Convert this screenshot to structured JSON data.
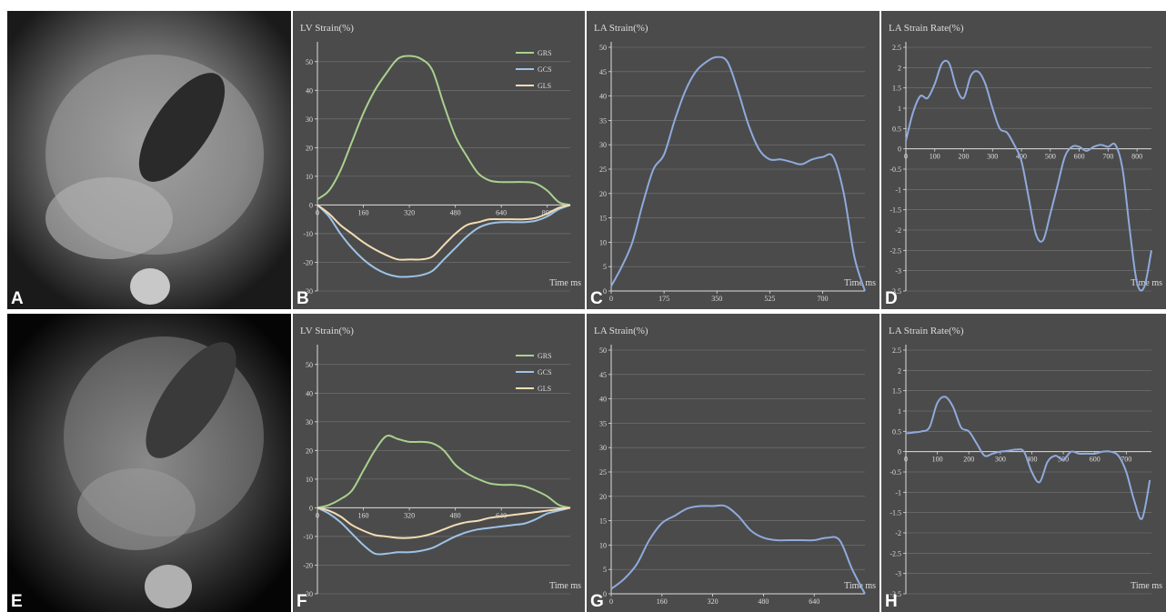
{
  "images": [
    {
      "label": "A"
    },
    {
      "label": "E"
    }
  ],
  "chart_data": [
    {
      "type": "line",
      "label": "B",
      "title": "LV Strain(%)",
      "xlabel": "Time ms",
      "legend": "upper right",
      "grid": true,
      "xlim": [
        0,
        880
      ],
      "ylim": [
        -30,
        55
      ],
      "xticks": [
        0,
        160,
        320,
        480,
        640,
        800
      ],
      "yticks": [
        -30,
        -20,
        -10,
        0,
        10,
        20,
        30,
        40,
        50
      ],
      "x": [
        0,
        40,
        80,
        120,
        160,
        200,
        240,
        280,
        320,
        360,
        400,
        440,
        480,
        520,
        560,
        600,
        640,
        680,
        720,
        760,
        800,
        840,
        880
      ],
      "series": [
        {
          "name": "GRS",
          "color": "#a9d18e",
          "values": [
            2,
            5,
            12,
            22,
            32,
            40,
            46,
            51,
            52,
            51,
            47,
            35,
            24,
            17,
            11,
            8.5,
            8,
            8,
            8,
            7.5,
            5,
            1,
            0
          ]
        },
        {
          "name": "GCS",
          "color": "#9dc3e6",
          "values": [
            0,
            -4,
            -10,
            -15,
            -19,
            -22,
            -24,
            -25,
            -25,
            -24.5,
            -23,
            -19,
            -15,
            -11,
            -8,
            -6.5,
            -6,
            -6,
            -6,
            -5.5,
            -4,
            -1.5,
            0
          ]
        },
        {
          "name": "GLS",
          "color": "#f4dcb4",
          "values": [
            0,
            -3,
            -7,
            -10,
            -13,
            -15.5,
            -17.5,
            -19,
            -19,
            -19,
            -18,
            -14,
            -10,
            -7,
            -6,
            -5,
            -5,
            -5,
            -5,
            -4.5,
            -3,
            -1,
            0
          ]
        }
      ]
    },
    {
      "type": "line",
      "label": "C",
      "title": "LA Strain(%)",
      "xlabel": "Time ms",
      "grid": true,
      "xlim": [
        0,
        840
      ],
      "ylim": [
        0,
        50
      ],
      "xticks": [
        0,
        175,
        350,
        525,
        700
      ],
      "yticks": [
        0,
        5,
        10,
        15,
        20,
        25,
        30,
        35,
        40,
        45,
        50
      ],
      "x": [
        0,
        35,
        70,
        105,
        140,
        175,
        210,
        245,
        280,
        315,
        350,
        385,
        420,
        455,
        490,
        525,
        560,
        595,
        630,
        665,
        700,
        735,
        770,
        805,
        840
      ],
      "series": [
        {
          "color": "#8faadc",
          "values": [
            1,
            5,
            10,
            18,
            25,
            28,
            35,
            41,
            45,
            47,
            48,
            47,
            41,
            34,
            29,
            27,
            27,
            26.5,
            26,
            27,
            27.5,
            27.5,
            20,
            7,
            0
          ]
        }
      ]
    },
    {
      "type": "line",
      "label": "D",
      "title": "LA Strain Rate(%)",
      "xlabel": "Time ms",
      "grid": true,
      "xlim": [
        0,
        850
      ],
      "ylim": [
        -3.5,
        2.5
      ],
      "xticks": [
        0,
        100,
        200,
        300,
        400,
        500,
        600,
        700,
        800
      ],
      "yticks": [
        -3.5,
        -3,
        -2.5,
        -2,
        -1.5,
        -1,
        -0.5,
        0,
        0.5,
        1,
        1.5,
        2,
        2.5
      ],
      "x": [
        0,
        25,
        50,
        75,
        100,
        125,
        150,
        175,
        200,
        225,
        250,
        275,
        300,
        325,
        350,
        375,
        400,
        425,
        450,
        475,
        500,
        525,
        550,
        575,
        600,
        625,
        650,
        675,
        700,
        725,
        750,
        775,
        800,
        825,
        850
      ],
      "series": [
        {
          "color": "#8faadc",
          "values": [
            0.2,
            0.9,
            1.3,
            1.25,
            1.6,
            2.1,
            2.1,
            1.5,
            1.25,
            1.8,
            1.9,
            1.6,
            1.0,
            0.5,
            0.4,
            0.1,
            -0.3,
            -1.2,
            -2.1,
            -2.25,
            -1.6,
            -0.9,
            -0.2,
            0.05,
            0.05,
            -0.05,
            0.05,
            0.1,
            0.05,
            0.1,
            -0.5,
            -2.0,
            -3.3,
            -3.4,
            -2.5
          ]
        }
      ]
    },
    {
      "type": "line",
      "label": "F",
      "title": "LV Strain(%)",
      "xlabel": "Time ms",
      "legend": "upper right",
      "grid": true,
      "xlim": [
        0,
        880
      ],
      "ylim": [
        -30,
        55
      ],
      "xticks": [
        0,
        160,
        320,
        480,
        640
      ],
      "yticks": [
        -30,
        -20,
        -10,
        0,
        10,
        20,
        30,
        40,
        50
      ],
      "x": [
        0,
        40,
        80,
        120,
        160,
        200,
        240,
        280,
        320,
        360,
        400,
        440,
        480,
        520,
        560,
        600,
        640,
        680,
        720,
        760,
        800,
        840,
        880
      ],
      "series": [
        {
          "name": "GRS",
          "color": "#a9d18e",
          "values": [
            0,
            1,
            3,
            6,
            13,
            20,
            25,
            24,
            23,
            23,
            22.5,
            20,
            15,
            12,
            10,
            8.5,
            8,
            8,
            7.5,
            6,
            4,
            1,
            0
          ]
        },
        {
          "name": "GCS",
          "color": "#9dc3e6",
          "values": [
            0,
            -2,
            -5,
            -9,
            -13,
            -16,
            -16,
            -15.5,
            -15.5,
            -15,
            -14,
            -12,
            -10,
            -8.5,
            -7.5,
            -7,
            -6.5,
            -6,
            -5.5,
            -4,
            -2,
            -1,
            0
          ]
        },
        {
          "name": "GLS",
          "color": "#f4dcb4",
          "values": [
            0,
            -1,
            -3,
            -6,
            -8,
            -9.5,
            -10,
            -10.5,
            -10.5,
            -10,
            -9,
            -7.5,
            -6,
            -5,
            -4.5,
            -3.5,
            -3,
            -2.5,
            -2,
            -1.5,
            -1,
            -0.5,
            0
          ]
        }
      ]
    },
    {
      "type": "line",
      "label": "G",
      "title": "LA Strain(%)",
      "xlabel": "Time ms",
      "grid": true,
      "xlim": [
        0,
        800
      ],
      "ylim": [
        0,
        50
      ],
      "xticks": [
        0,
        160,
        320,
        480,
        640
      ],
      "yticks": [
        0,
        5,
        10,
        15,
        20,
        25,
        30,
        35,
        40,
        45,
        50
      ],
      "x": [
        0,
        40,
        80,
        120,
        160,
        200,
        240,
        280,
        320,
        360,
        400,
        440,
        480,
        520,
        560,
        600,
        640,
        680,
        720,
        760,
        800
      ],
      "series": [
        {
          "color": "#8faadc",
          "values": [
            1,
            3,
            6,
            11,
            14.5,
            16,
            17.5,
            18,
            18,
            18,
            16,
            13,
            11.5,
            11,
            11,
            11,
            11,
            11.5,
            11,
            5,
            0
          ]
        }
      ]
    },
    {
      "type": "line",
      "label": "H",
      "title": "LA Strain Rate(%)",
      "xlabel": "Time ms",
      "grid": true,
      "xlim": [
        0,
        780
      ],
      "ylim": [
        -3.5,
        2.5
      ],
      "xticks": [
        0,
        100,
        200,
        300,
        400,
        500,
        600,
        700
      ],
      "yticks": [
        -3.5,
        -3,
        -2.5,
        -2,
        -1.5,
        -1,
        -0.5,
        0,
        0.5,
        1,
        1.5,
        2,
        2.5
      ],
      "x": [
        0,
        25,
        50,
        75,
        100,
        125,
        150,
        175,
        200,
        225,
        250,
        275,
        300,
        325,
        350,
        375,
        400,
        425,
        450,
        475,
        500,
        525,
        550,
        575,
        600,
        625,
        650,
        675,
        700,
        725,
        750,
        775
      ],
      "series": [
        {
          "color": "#8faadc",
          "values": [
            0.45,
            0.47,
            0.5,
            0.6,
            1.2,
            1.35,
            1.1,
            0.6,
            0.5,
            0.2,
            -0.1,
            -0.05,
            0.0,
            0.02,
            0.05,
            0.0,
            -0.5,
            -0.75,
            -0.25,
            -0.1,
            -0.2,
            0.0,
            -0.05,
            -0.05,
            -0.05,
            0,
            0,
            -0.1,
            -0.5,
            -1.2,
            -1.65,
            -0.7
          ]
        }
      ]
    }
  ]
}
